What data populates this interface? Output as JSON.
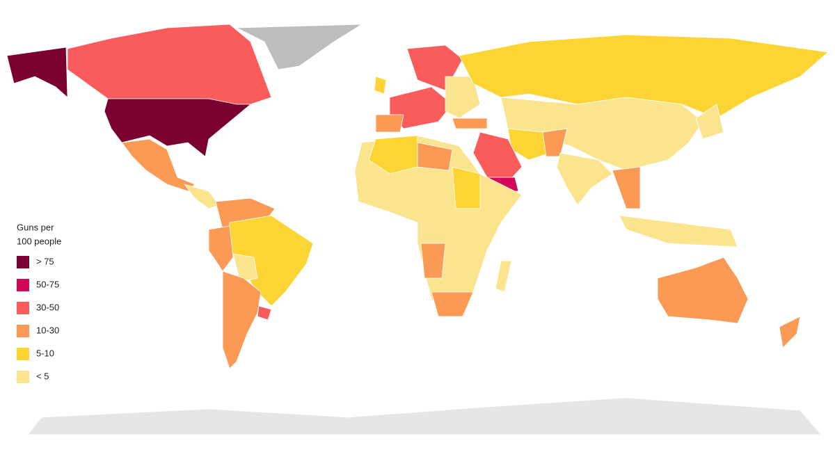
{
  "legend": {
    "title": [
      "Guns per",
      "100 people"
    ],
    "items": [
      {
        "label": "> 75",
        "color": "#7a0030"
      },
      {
        "label": "50-75",
        "color": "#d1075a"
      },
      {
        "label": "30-50",
        "color": "#fa5c5c"
      },
      {
        "label": "10-30",
        "color": "#fb9a55"
      },
      {
        "label": "5-10",
        "color": "#fcd535"
      },
      {
        "label": "< 5",
        "color": "#fbe48e"
      }
    ]
  }
}
